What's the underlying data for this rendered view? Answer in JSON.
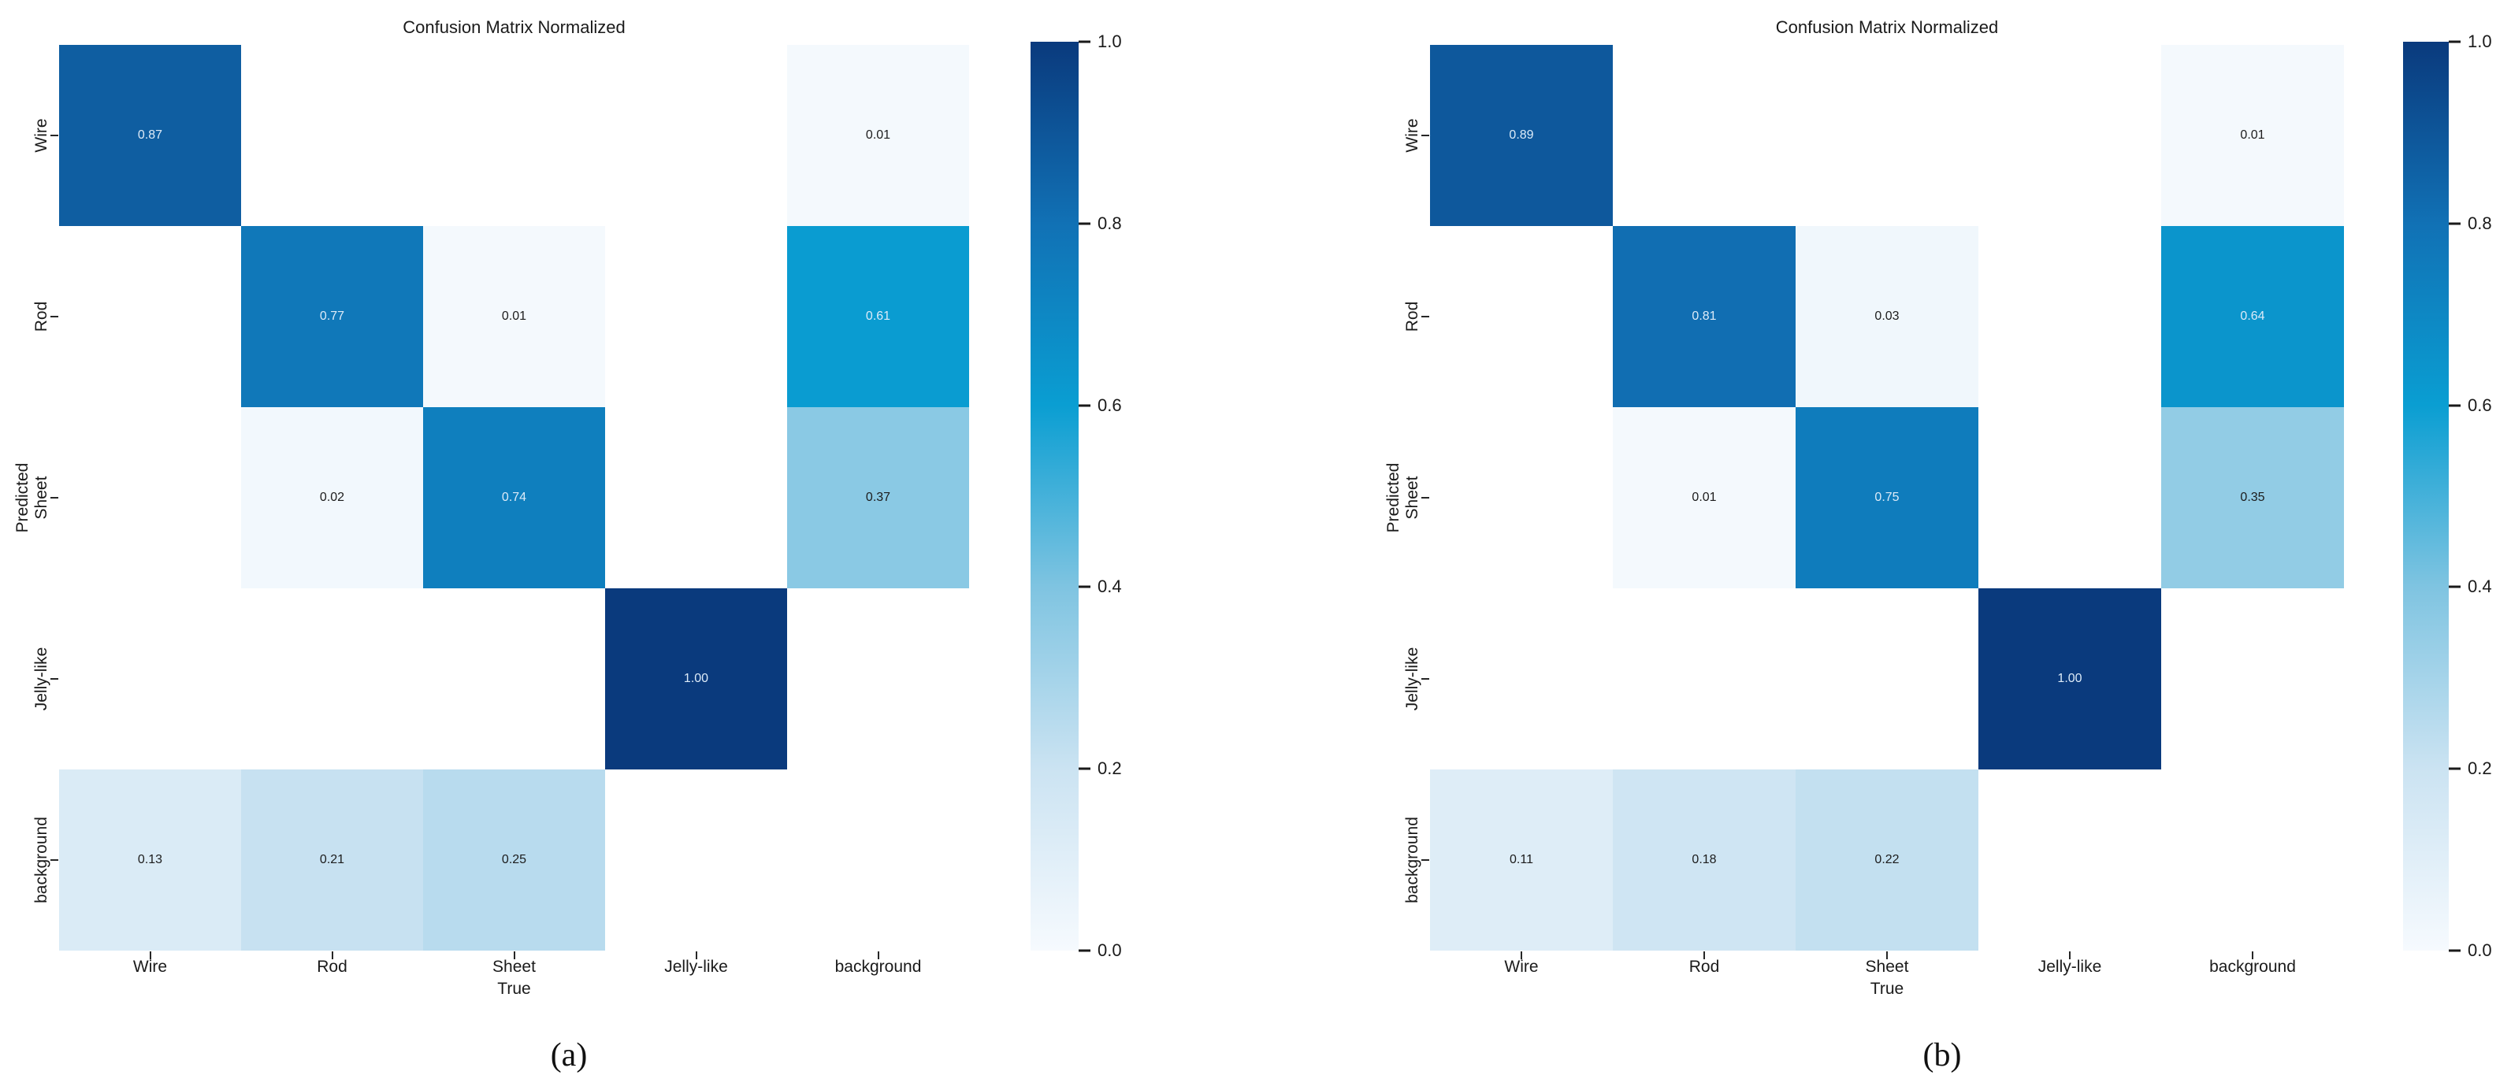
{
  "figure": {
    "background": "#ffffff"
  },
  "colors": {
    "colormap_stops": [
      [
        0.0,
        "#f6fafe"
      ],
      [
        0.2,
        "#cbe3f2"
      ],
      [
        0.4,
        "#7fc4e1"
      ],
      [
        0.6,
        "#0a9ed2"
      ],
      [
        0.8,
        "#1171b5"
      ],
      [
        1.0,
        "#0a3a7d"
      ]
    ],
    "annotation_on_dark": "#ddebf8",
    "annotation_on_light": "#1c1c1c",
    "masked_cell": "#ffffff",
    "axis_text": "#1a1a1a"
  },
  "chart_data": [
    {
      "type": "heatmap",
      "title": "Confusion Matrix Normalized",
      "xlabel": "True",
      "ylabel": "Predicted",
      "caption": "(a)",
      "x_categories": [
        "Wire",
        "Rod",
        "Sheet",
        "Jelly-like",
        "background"
      ],
      "y_categories": [
        "Wire",
        "Rod",
        "Sheet",
        "Jelly-like",
        "background"
      ],
      "value_range": [
        0.0,
        1.0
      ],
      "colorbar_tick_values": [
        1.0,
        0.8,
        0.6,
        0.4,
        0.2,
        0.0
      ],
      "colorbar_tick_labels": [
        "1.0",
        "0.8",
        "0.6",
        "0.4",
        "0.2",
        "0.0"
      ],
      "matrix": [
        [
          0.87,
          null,
          null,
          null,
          0.01
        ],
        [
          null,
          0.77,
          0.01,
          null,
          0.61
        ],
        [
          null,
          0.02,
          0.74,
          null,
          0.37
        ],
        [
          null,
          null,
          null,
          1.0,
          null
        ],
        [
          0.13,
          0.21,
          0.25,
          null,
          null
        ]
      ]
    },
    {
      "type": "heatmap",
      "title": "Confusion Matrix Normalized",
      "xlabel": "True",
      "ylabel": "Predicted",
      "caption": "(b)",
      "x_categories": [
        "Wire",
        "Rod",
        "Sheet",
        "Jelly-like",
        "background"
      ],
      "y_categories": [
        "Wire",
        "Rod",
        "Sheet",
        "Jelly-like",
        "background"
      ],
      "value_range": [
        0.0,
        1.0
      ],
      "colorbar_tick_values": [
        1.0,
        0.8,
        0.6,
        0.4,
        0.2,
        0.0
      ],
      "colorbar_tick_labels": [
        "1.0",
        "0.8",
        "0.6",
        "0.4",
        "0.2",
        "0.0"
      ],
      "matrix": [
        [
          0.89,
          null,
          null,
          null,
          0.01
        ],
        [
          null,
          0.81,
          0.03,
          null,
          0.64
        ],
        [
          null,
          0.01,
          0.75,
          null,
          0.35
        ],
        [
          null,
          null,
          null,
          1.0,
          null
        ],
        [
          0.11,
          0.18,
          0.22,
          null,
          null
        ]
      ]
    }
  ]
}
